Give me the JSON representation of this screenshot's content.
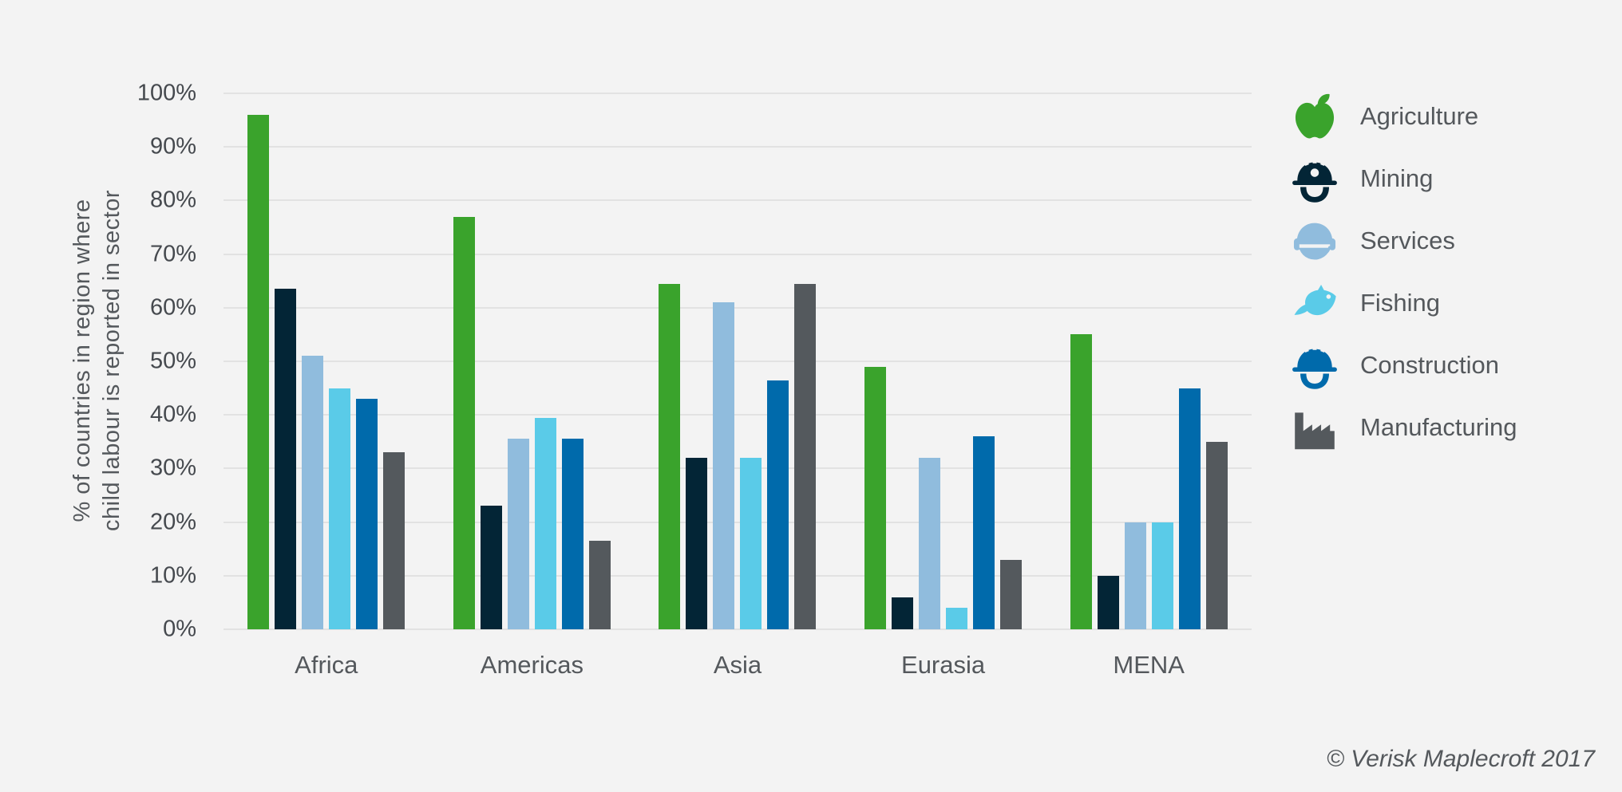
{
  "chart_data": {
    "type": "bar",
    "title": "",
    "categories": [
      "Africa",
      "Americas",
      "Asia",
      "Eurasia",
      "MENA"
    ],
    "series": [
      {
        "name": "Agriculture",
        "icon": "apple-icon",
        "color": "#3aa32c",
        "values": [
          96,
          77,
          64.5,
          49,
          55
        ]
      },
      {
        "name": "Mining",
        "icon": "mining-helmet-icon",
        "color": "#032536",
        "values": [
          63.5,
          23,
          32,
          6,
          10
        ]
      },
      {
        "name": "Services",
        "icon": "headset-icon",
        "color": "#90bcdd",
        "values": [
          51,
          35.5,
          61,
          32,
          20
        ]
      },
      {
        "name": "Fishing",
        "icon": "fish-icon",
        "color": "#5acbe8",
        "values": [
          45,
          39.5,
          32,
          4,
          20
        ]
      },
      {
        "name": "Construction",
        "icon": "construction-helmet-icon",
        "color": "#006aab",
        "values": [
          43,
          35.5,
          46.5,
          36,
          45
        ]
      },
      {
        "name": "Manufacturing",
        "icon": "factory-icon",
        "color": "#54595d",
        "values": [
          33,
          16.5,
          64.5,
          13,
          35
        ]
      }
    ],
    "ylabel_line1": "% of countries in region where",
    "ylabel_line2": "child labour is reported in sector",
    "xlabel": "",
    "ylim": [
      0,
      100
    ],
    "yticks": [
      "100%",
      "90%",
      "80%",
      "70%",
      "60%",
      "50%",
      "40%",
      "30%",
      "20%",
      "10%",
      "0%"
    ],
    "grid": "horizontal",
    "legend_position": "right"
  },
  "footer": {
    "copyright": "© Verisk Maplecroft 2017"
  },
  "colors": {
    "background": "#f3f3f3",
    "gridline": "#e2e2e2",
    "tick_text": "#45494e",
    "label_text": "#54585c"
  }
}
